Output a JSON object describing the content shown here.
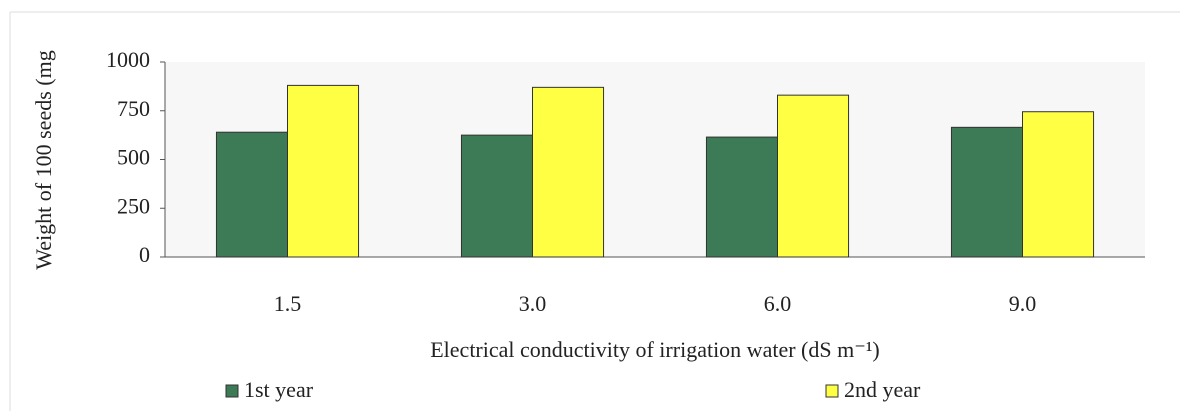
{
  "chart_data": {
    "type": "bar",
    "y_label": "Weight of 100 seeds (mg",
    "x_label": "Electrical conductivity of irrigation water (dS m⁻¹)",
    "categories": [
      "1.5",
      "3.0",
      "6.0",
      "9.0"
    ],
    "series": [
      {
        "name": "1st year",
        "color": "#3d7a56",
        "values": [
          640,
          625,
          615,
          665
        ]
      },
      {
        "name": "2nd year",
        "color": "#ffff44",
        "values": [
          880,
          870,
          830,
          745
        ]
      }
    ],
    "ylim": [
      0,
      1000
    ],
    "yticks": [
      0,
      250,
      500,
      750,
      1000
    ]
  }
}
